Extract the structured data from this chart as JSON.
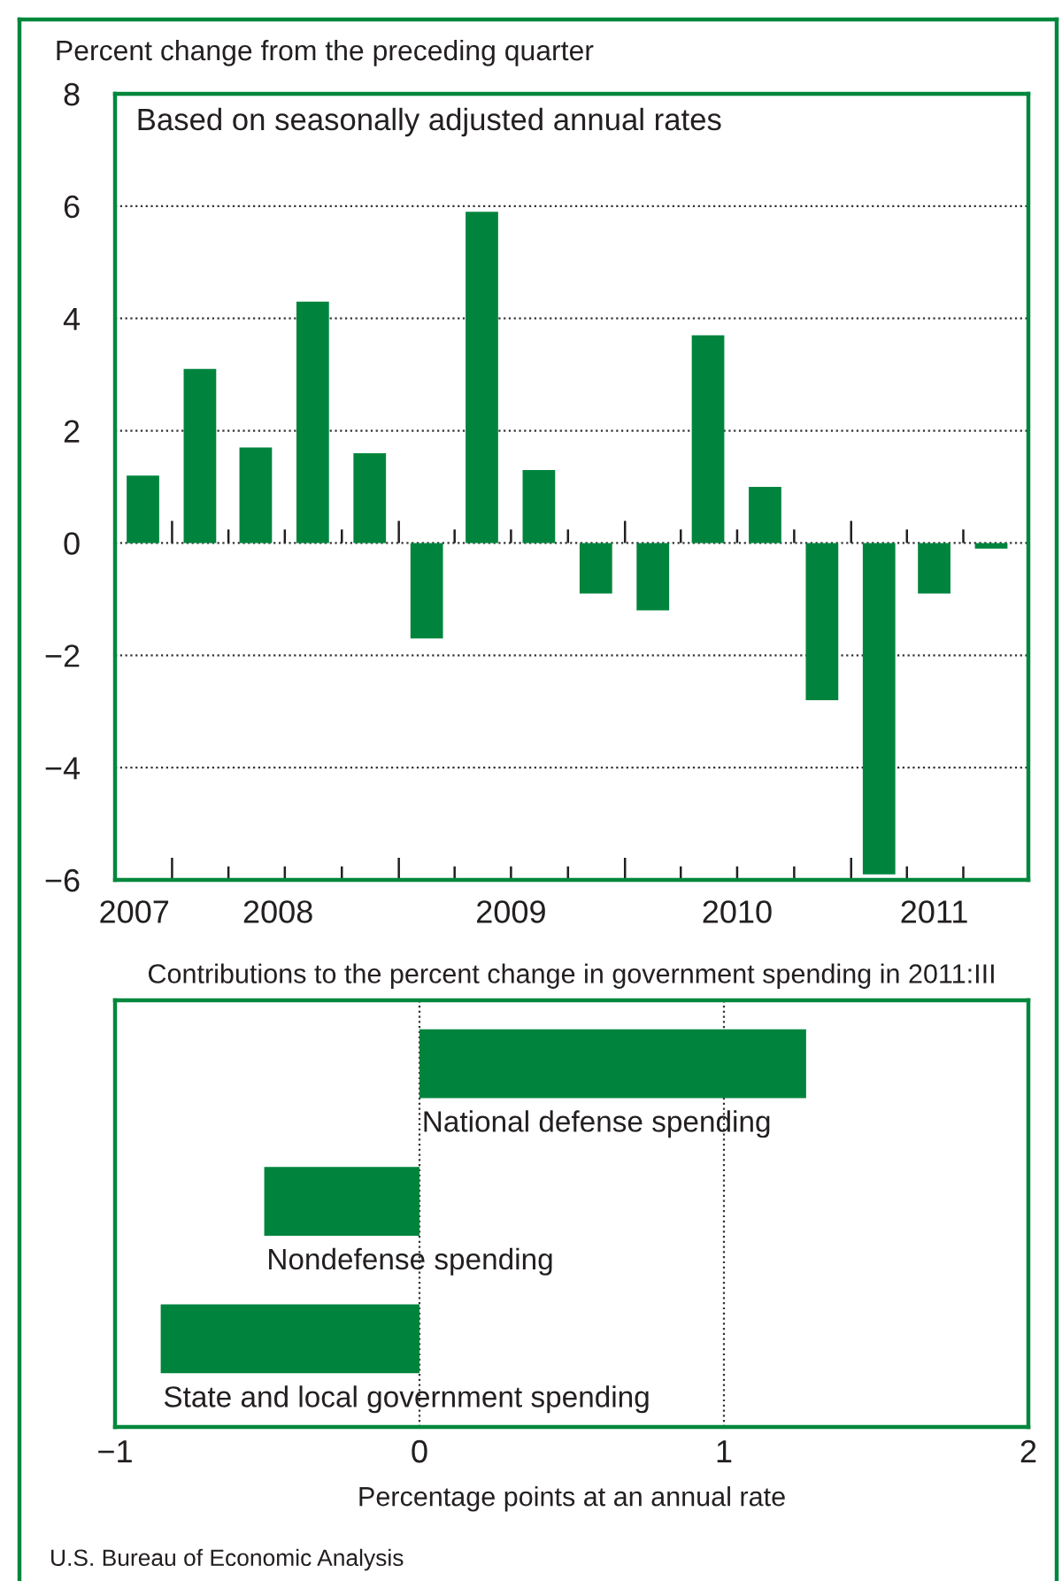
{
  "chart_data": [
    {
      "type": "bar",
      "ylabel": "Percent change from the preceding quarter",
      "annotations": [
        "Based on seasonally adjusted annual rates"
      ],
      "x": [
        "2007-11-15",
        "2008-02-15",
        "2008-05-15",
        "2008-08-15",
        "2008-11-15",
        "2009-02-15",
        "2009-05-15",
        "2009-08-15",
        "2009-11-15",
        "2010-02-15",
        "2010-05-15",
        "2010-08-15",
        "2010-11-15",
        "2011-02-15",
        "2011-05-15",
        "2011-08-15"
      ],
      "values": [
        1.2,
        3.1,
        1.7,
        4.3,
        1.6,
        -1.7,
        5.9,
        1.3,
        -0.9,
        -1.2,
        3.7,
        1.0,
        -2.8,
        -5.9,
        -0.9,
        -0.1
      ],
      "color": "#00843d",
      "xlim": [
        "2007-10-01",
        "2011-10-14"
      ],
      "xticks": [
        {
          "value": "2007-11-01",
          "label": "2007"
        },
        {
          "value": "2008-01-01",
          "label": null
        },
        {
          "value": "2008-04-01",
          "label": null
        },
        {
          "value": "2008-06-20",
          "label": "2008"
        },
        {
          "value": "2008-07-01",
          "label": null
        },
        {
          "value": "2008-10-01",
          "label": null
        },
        {
          "value": "2009-01-01",
          "label": null
        },
        {
          "value": "2009-04-01",
          "label": null
        },
        {
          "value": "2009-07-01",
          "label": "2009"
        },
        {
          "value": "2009-10-01",
          "label": null
        },
        {
          "value": "2010-01-01",
          "label": null
        },
        {
          "value": "2010-04-01",
          "label": null
        },
        {
          "value": "2010-07-01",
          "label": "2010"
        },
        {
          "value": "2010-10-01",
          "label": null
        },
        {
          "value": "2011-01-01",
          "label": null
        },
        {
          "value": "2011-04-01",
          "label": null
        },
        {
          "value": "2011-05-15",
          "label": "2011"
        },
        {
          "value": "2011-07-01",
          "label": null
        }
      ],
      "ylim": [
        -6,
        8
      ],
      "yticks": [
        8,
        6,
        4,
        2,
        0,
        {
          "value": -2,
          "label": "−2"
        },
        {
          "value": -4,
          "label": "−4"
        },
        {
          "value": -6,
          "label": "−6"
        }
      ],
      "grid": "y"
    },
    {
      "type": "bar",
      "orientation": "horizontal",
      "title": "Contributions to the percent change in government spending in 2011:III",
      "xlabel": "Percentage points at an annual rate",
      "categories": [
        "National defense spending",
        "Nondefense spending",
        "State and local government spending"
      ],
      "values": [
        1.27,
        -0.51,
        -0.85
      ],
      "color": "#00843d",
      "xlim": [
        -1,
        2
      ],
      "xticks": [
        {
          "value": -1,
          "label": "−1"
        },
        0,
        1,
        2
      ],
      "grid": "x",
      "annotations": [
        "U.S. Bureau of Economic Analysis"
      ]
    }
  ]
}
